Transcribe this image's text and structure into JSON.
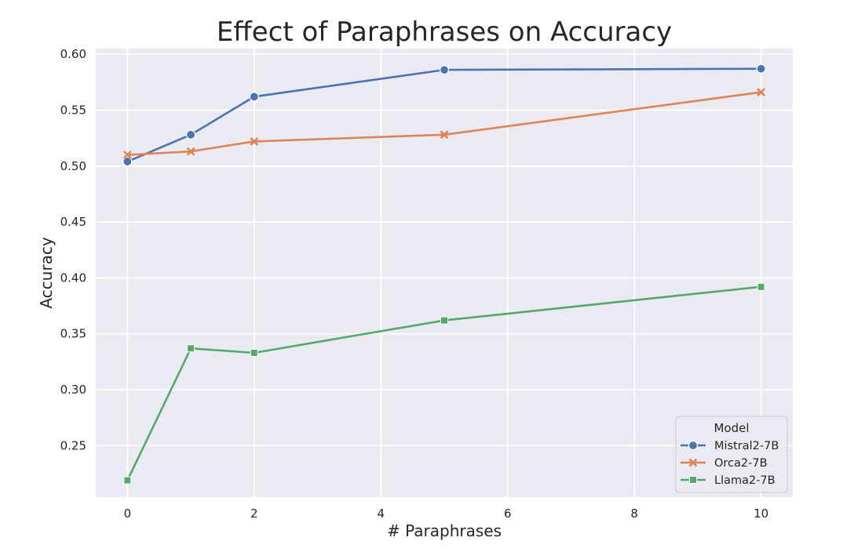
{
  "chart_data": {
    "type": "line",
    "title": "Effect of Paraphrases on Accuracy",
    "xlabel": "# Paraphrases",
    "ylabel": "Accuracy",
    "x_ticks": [
      0,
      2,
      4,
      6,
      8,
      10
    ],
    "y_ticks": [
      0.25,
      0.3,
      0.35,
      0.4,
      0.45,
      0.5,
      0.55,
      0.6
    ],
    "x_tick_labels": [
      "0",
      "2",
      "4",
      "6",
      "8",
      "10"
    ],
    "y_tick_labels": [
      "0.25",
      "0.30",
      "0.35",
      "0.40",
      "0.45",
      "0.50",
      "0.55",
      "0.60"
    ],
    "xlim": [
      -0.5,
      10.5
    ],
    "ylim": [
      0.204,
      0.605
    ],
    "grid": true,
    "legend": {
      "title": "Model",
      "placement": "lower-right"
    },
    "series": [
      {
        "name": "Mistral2-7B",
        "color": "#4c72b0",
        "marker": "circle",
        "x": [
          0,
          1,
          2,
          5,
          10
        ],
        "y": [
          0.504,
          0.528,
          0.562,
          0.586,
          0.587
        ]
      },
      {
        "name": "Orca2-7B",
        "color": "#dd8452",
        "marker": "x",
        "x": [
          0,
          1,
          2,
          5,
          10
        ],
        "y": [
          0.51,
          0.513,
          0.522,
          0.528,
          0.566
        ]
      },
      {
        "name": "Llama2-7B",
        "color": "#55a868",
        "marker": "square",
        "x": [
          0,
          1,
          2,
          5,
          10
        ],
        "y": [
          0.219,
          0.337,
          0.333,
          0.362,
          0.392
        ]
      }
    ]
  }
}
